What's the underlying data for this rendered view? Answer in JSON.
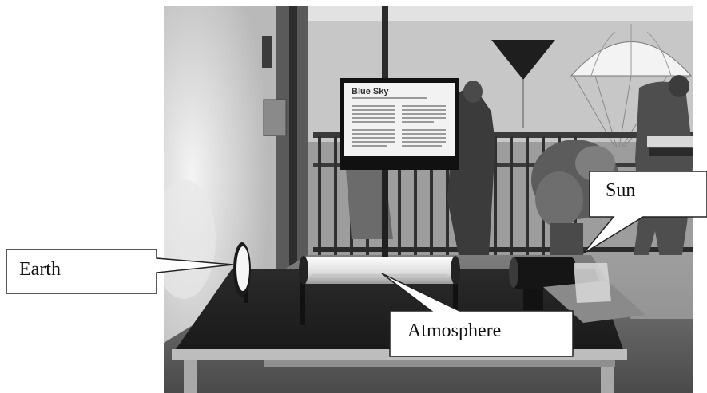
{
  "photo": {
    "description_free": true,
    "tone": "grayscale"
  },
  "exhibit_sign": {
    "title": "Blue Sky"
  },
  "callouts": {
    "earth": "Earth",
    "atmosphere": "Atmosphere",
    "sun": "Sun"
  },
  "colors": {
    "callout_fill": "#ffffff",
    "callout_stroke": "#222222"
  }
}
